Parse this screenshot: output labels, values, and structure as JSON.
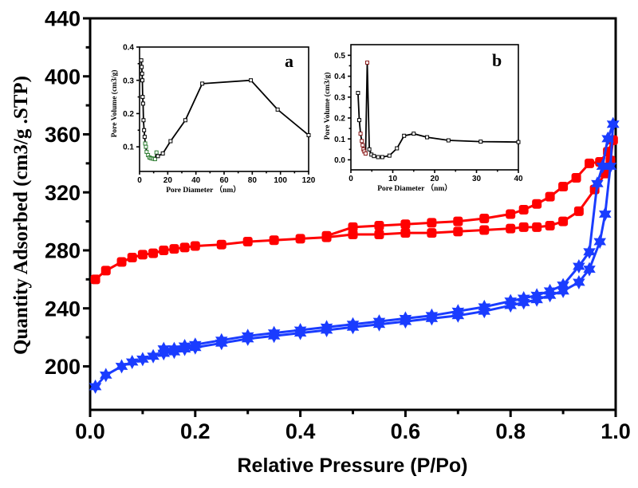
{
  "chart_data": [
    {
      "type": "line",
      "xlabel": "Relative Pressure (P/Po)",
      "ylabel": "Quantity Adsorbed (cm3/g .STP)",
      "xlim": [
        0.0,
        1.0
      ],
      "ylim": [
        170,
        440
      ],
      "xticks": [
        "0.0",
        "0.2",
        "0.4",
        "0.6",
        "0.8",
        "1.0"
      ],
      "yticks": [
        "200",
        "240",
        "280",
        "320",
        "360",
        "400",
        "440"
      ],
      "grid": false,
      "series": [
        {
          "marker": "square",
          "color": "#ff0000",
          "branch": "adsorption",
          "x": [
            0.01,
            0.03,
            0.06,
            0.08,
            0.1,
            0.12,
            0.14,
            0.16,
            0.18,
            0.2,
            0.25,
            0.3,
            0.35,
            0.4,
            0.45,
            0.5,
            0.55,
            0.6,
            0.65,
            0.7,
            0.75,
            0.8,
            0.825,
            0.85,
            0.875,
            0.9,
            0.93,
            0.96,
            0.98,
            0.99,
            0.995
          ],
          "y": [
            260,
            266,
            272,
            275,
            277,
            278,
            280,
            281,
            282,
            283,
            284,
            286,
            287,
            288,
            289,
            291,
            291,
            292,
            292,
            293,
            294,
            295,
            296,
            296,
            297,
            300,
            307,
            322,
            333,
            342,
            356
          ]
        },
        {
          "marker": "square",
          "color": "#ff0000",
          "branch": "desorption",
          "x": [
            0.995,
            0.985,
            0.97,
            0.95,
            0.925,
            0.9,
            0.875,
            0.85,
            0.825,
            0.8,
            0.75,
            0.7,
            0.65,
            0.6,
            0.55,
            0.5,
            0.45
          ],
          "y": [
            356,
            348,
            341,
            340,
            330,
            324,
            317,
            312,
            308,
            305,
            302,
            300,
            299,
            298,
            297,
            296,
            290
          ]
        },
        {
          "marker": "star",
          "color": "#1a3cff",
          "branch": "adsorption",
          "x": [
            0.01,
            0.03,
            0.06,
            0.08,
            0.1,
            0.12,
            0.14,
            0.16,
            0.18,
            0.2,
            0.25,
            0.3,
            0.35,
            0.4,
            0.45,
            0.5,
            0.55,
            0.6,
            0.65,
            0.7,
            0.75,
            0.8,
            0.825,
            0.85,
            0.875,
            0.9,
            0.93,
            0.95,
            0.97,
            0.98,
            0.99,
            0.995
          ],
          "y": [
            186,
            194,
            200,
            203,
            205,
            207,
            209,
            210,
            212,
            213,
            216,
            219,
            221,
            223,
            225,
            227,
            229,
            231,
            233,
            235,
            238,
            242,
            244,
            246,
            249,
            252,
            258,
            267,
            286,
            305,
            338,
            367
          ]
        },
        {
          "marker": "star",
          "color": "#1a3cff",
          "branch": "desorption",
          "x": [
            0.995,
            0.985,
            0.975,
            0.965,
            0.95,
            0.93,
            0.9,
            0.875,
            0.85,
            0.825,
            0.8,
            0.75,
            0.7,
            0.65,
            0.6,
            0.55,
            0.5,
            0.45,
            0.4,
            0.35,
            0.3,
            0.25,
            0.2,
            0.18,
            0.16,
            0.14
          ],
          "y": [
            367,
            357,
            338,
            326,
            279,
            269,
            256,
            252,
            249,
            247,
            245,
            241,
            238,
            235,
            233,
            231,
            229,
            227,
            225,
            223,
            221,
            218,
            215,
            214,
            212,
            212
          ]
        }
      ]
    },
    {
      "type": "line",
      "panel": "a",
      "xlabel": "Pore Diameter （nm）",
      "ylabel": "Pore Volume (cm3/g)",
      "xlim": [
        0,
        120
      ],
      "ylim": [
        0.026,
        0.4
      ],
      "xticks": [
        "0",
        "20",
        "40",
        "60",
        "80",
        "100",
        "120"
      ],
      "yticks": [
        "0.1",
        "0.2",
        "0.3",
        "0.4"
      ],
      "series": [
        {
          "color": "#000000",
          "highlight_color": "#2e7d32",
          "highlight_range": [
            4,
            12
          ],
          "x": [
            1.2,
            1.5,
            1.8,
            2.0,
            2.2,
            2.5,
            2.8,
            3.2,
            3.6,
            4,
            4.5,
            5,
            6,
            7,
            8,
            9,
            10,
            11,
            12,
            13,
            16.5,
            22,
            32.5,
            44.5,
            79,
            98,
            120
          ],
          "y": [
            0.36,
            0.34,
            0.32,
            0.3,
            0.25,
            0.23,
            0.18,
            0.15,
            0.13,
            0.11,
            0.1,
            0.085,
            0.075,
            0.068,
            0.066,
            0.065,
            0.064,
            0.063,
            0.083,
            0.072,
            0.08,
            0.117,
            0.18,
            0.29,
            0.3,
            0.212,
            0.135
          ]
        }
      ]
    },
    {
      "type": "line",
      "panel": "b",
      "xlabel": "Pore Diameter （nm）",
      "ylabel": "Pore Volume (cm3/g)",
      "xlim": [
        0,
        40
      ],
      "ylim": [
        -0.048,
        0.551
      ],
      "xticks": [
        "0",
        "10",
        "20",
        "30",
        "40"
      ],
      "yticks": [
        "0.0",
        "0.1",
        "0.2",
        "0.3",
        "0.4",
        "0.5"
      ],
      "series": [
        {
          "color": "#000000",
          "highlight_color": "#8b1a1a",
          "highlight_range": [
            2.3,
            3.9
          ],
          "x": [
            1.7,
            2.0,
            2.3,
            2.6,
            2.8,
            3.0,
            3.2,
            3.5,
            3.9,
            4.4,
            4.9,
            5.5,
            6.5,
            7.5,
            9.2,
            11,
            12.7,
            15,
            18.2,
            23.3,
            31,
            40
          ],
          "y": [
            0.32,
            0.19,
            0.125,
            0.09,
            0.07,
            0.05,
            0.04,
            0.03,
            0.465,
            0.05,
            0.025,
            0.018,
            0.013,
            0.013,
            0.02,
            0.055,
            0.115,
            0.125,
            0.108,
            0.093,
            0.087,
            0.085
          ]
        }
      ]
    }
  ]
}
